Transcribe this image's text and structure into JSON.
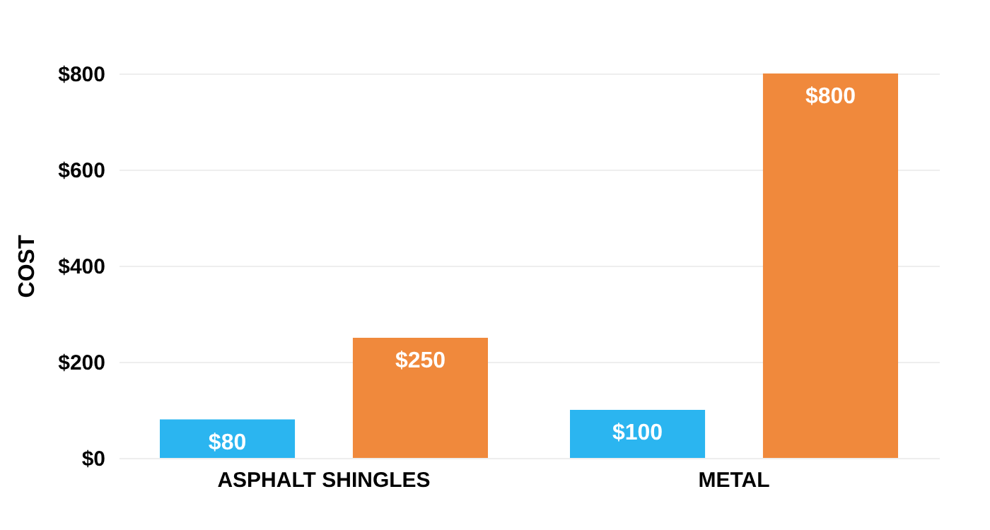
{
  "chart_data": {
    "type": "bar",
    "ylabel": "COST",
    "categories": [
      "ASPHALT SHINGLES",
      "METAL"
    ],
    "series": [
      {
        "color": "#2bb5f0",
        "values": [
          80,
          100
        ],
        "value_labels": [
          "$80",
          "$100"
        ]
      },
      {
        "color": "#f0893c",
        "values": [
          250,
          800
        ],
        "value_labels": [
          "$250",
          "$800"
        ]
      }
    ],
    "ylim": [
      0,
      800
    ],
    "yticks": [
      {
        "value": 0,
        "label": "$0"
      },
      {
        "value": 200,
        "label": "$200"
      },
      {
        "value": 400,
        "label": "$400"
      },
      {
        "value": 600,
        "label": "$600"
      },
      {
        "value": 800,
        "label": "$800"
      }
    ],
    "grid": "y"
  }
}
